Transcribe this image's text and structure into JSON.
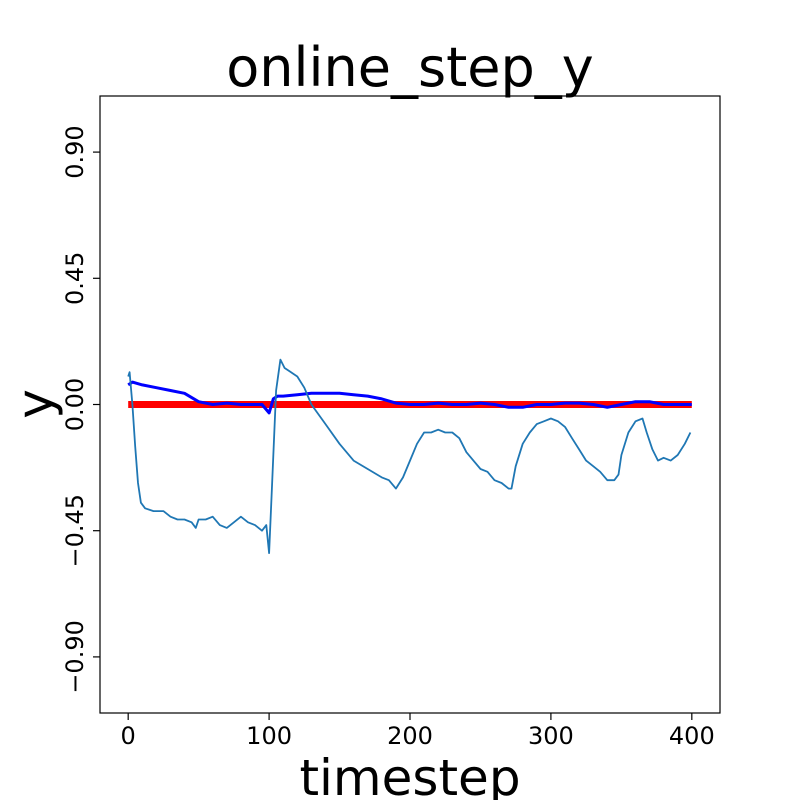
{
  "chart_data": {
    "type": "line",
    "title": "online_step_y",
    "xlabel": "timestep",
    "ylabel": "y",
    "xlim": [
      -20,
      420
    ],
    "ylim": [
      -1.1,
      1.1
    ],
    "x_ticks": [
      0,
      100,
      200,
      300,
      400
    ],
    "x_tick_labels": [
      "0",
      "100",
      "200",
      "300",
      "400"
    ],
    "y_ticks": [
      0.9,
      0.45,
      0.0,
      -0.45,
      -0.9
    ],
    "y_tick_labels": [
      "0.90",
      "0.45",
      "0.00",
      "−0.45",
      "−0.90"
    ],
    "grid": false,
    "legend": "none",
    "series": [
      {
        "color": "#ff0000",
        "line_width": "thick",
        "points": [
          [
            0,
            0.0
          ],
          [
            400,
            0.0
          ]
        ]
      },
      {
        "color": "#0000ff",
        "line_width": "medium",
        "points": [
          [
            0,
            0.07
          ],
          [
            3,
            0.08
          ],
          [
            10,
            0.07
          ],
          [
            20,
            0.06
          ],
          [
            30,
            0.05
          ],
          [
            40,
            0.04
          ],
          [
            50,
            0.01
          ],
          [
            60,
            0.0
          ],
          [
            70,
            0.005
          ],
          [
            80,
            0.0
          ],
          [
            90,
            0.0
          ],
          [
            95,
            0.0
          ],
          [
            100,
            -0.03
          ],
          [
            103,
            0.02
          ],
          [
            106,
            0.03
          ],
          [
            110,
            0.03
          ],
          [
            120,
            0.035
          ],
          [
            130,
            0.04
          ],
          [
            140,
            0.04
          ],
          [
            150,
            0.04
          ],
          [
            160,
            0.035
          ],
          [
            170,
            0.03
          ],
          [
            180,
            0.02
          ],
          [
            190,
            0.005
          ],
          [
            200,
            0.0
          ],
          [
            210,
            0.0
          ],
          [
            220,
            0.005
          ],
          [
            230,
            0.0
          ],
          [
            240,
            0.0
          ],
          [
            250,
            0.005
          ],
          [
            260,
            0.0
          ],
          [
            270,
            -0.01
          ],
          [
            280,
            -0.01
          ],
          [
            290,
            0.0
          ],
          [
            300,
            0.0
          ],
          [
            310,
            0.005
          ],
          [
            320,
            0.005
          ],
          [
            330,
            0.0
          ],
          [
            340,
            -0.01
          ],
          [
            350,
            0.0
          ],
          [
            360,
            0.01
          ],
          [
            370,
            0.01
          ],
          [
            380,
            0.0
          ],
          [
            390,
            0.0
          ],
          [
            400,
            0.0
          ]
        ]
      },
      {
        "color": "#1f77b4",
        "line_width": "thin",
        "points": [
          [
            0,
            0.1
          ],
          [
            1,
            0.115
          ],
          [
            3,
            0.0
          ],
          [
            5,
            -0.15
          ],
          [
            7,
            -0.28
          ],
          [
            9,
            -0.35
          ],
          [
            12,
            -0.37
          ],
          [
            18,
            -0.38
          ],
          [
            25,
            -0.38
          ],
          [
            30,
            -0.4
          ],
          [
            35,
            -0.41
          ],
          [
            40,
            -0.41
          ],
          [
            45,
            -0.42
          ],
          [
            48,
            -0.44
          ],
          [
            50,
            -0.41
          ],
          [
            55,
            -0.41
          ],
          [
            60,
            -0.4
          ],
          [
            65,
            -0.43
          ],
          [
            70,
            -0.44
          ],
          [
            75,
            -0.42
          ],
          [
            80,
            -0.4
          ],
          [
            85,
            -0.42
          ],
          [
            90,
            -0.43
          ],
          [
            95,
            -0.45
          ],
          [
            98,
            -0.43
          ],
          [
            100,
            -0.53
          ],
          [
            102,
            -0.3
          ],
          [
            105,
            0.05
          ],
          [
            108,
            0.16
          ],
          [
            111,
            0.13
          ],
          [
            114,
            0.12
          ],
          [
            120,
            0.1
          ],
          [
            125,
            0.06
          ],
          [
            130,
            0.0
          ],
          [
            140,
            -0.07
          ],
          [
            150,
            -0.14
          ],
          [
            160,
            -0.2
          ],
          [
            170,
            -0.23
          ],
          [
            180,
            -0.26
          ],
          [
            185,
            -0.27
          ],
          [
            190,
            -0.3
          ],
          [
            195,
            -0.26
          ],
          [
            200,
            -0.2
          ],
          [
            205,
            -0.14
          ],
          [
            210,
            -0.1
          ],
          [
            215,
            -0.1
          ],
          [
            220,
            -0.09
          ],
          [
            225,
            -0.1
          ],
          [
            230,
            -0.1
          ],
          [
            235,
            -0.12
          ],
          [
            240,
            -0.17
          ],
          [
            245,
            -0.2
          ],
          [
            250,
            -0.23
          ],
          [
            255,
            -0.24
          ],
          [
            260,
            -0.27
          ],
          [
            265,
            -0.28
          ],
          [
            270,
            -0.3
          ],
          [
            272,
            -0.3
          ],
          [
            275,
            -0.22
          ],
          [
            280,
            -0.14
          ],
          [
            285,
            -0.1
          ],
          [
            290,
            -0.07
          ],
          [
            295,
            -0.06
          ],
          [
            300,
            -0.05
          ],
          [
            305,
            -0.06
          ],
          [
            310,
            -0.08
          ],
          [
            315,
            -0.12
          ],
          [
            320,
            -0.16
          ],
          [
            325,
            -0.2
          ],
          [
            330,
            -0.22
          ],
          [
            335,
            -0.24
          ],
          [
            340,
            -0.27
          ],
          [
            345,
            -0.27
          ],
          [
            348,
            -0.25
          ],
          [
            350,
            -0.18
          ],
          [
            355,
            -0.1
          ],
          [
            360,
            -0.06
          ],
          [
            365,
            -0.05
          ],
          [
            368,
            -0.1
          ],
          [
            372,
            -0.16
          ],
          [
            376,
            -0.2
          ],
          [
            380,
            -0.19
          ],
          [
            385,
            -0.2
          ],
          [
            390,
            -0.18
          ],
          [
            395,
            -0.14
          ],
          [
            399,
            -0.1
          ]
        ]
      }
    ]
  }
}
